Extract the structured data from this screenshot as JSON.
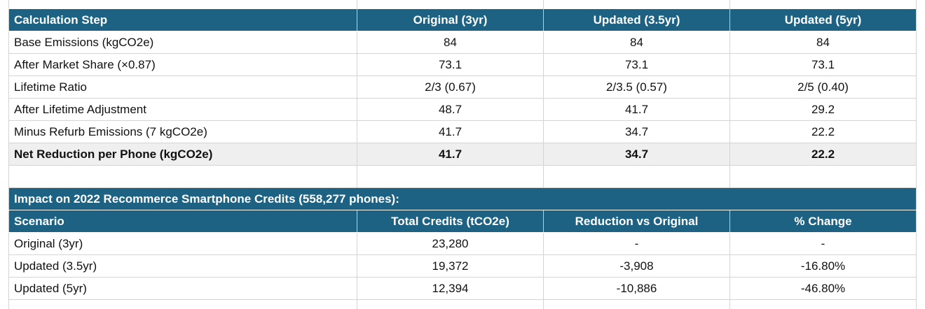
{
  "calc_table": {
    "headers": [
      "Calculation Step",
      "Original (3yr)",
      "Updated (3.5yr)",
      "Updated (5yr)"
    ],
    "rows": [
      [
        "Base Emissions (kgCO2e)",
        "84",
        "84",
        "84"
      ],
      [
        "After Market Share (×0.87)",
        "73.1",
        "73.1",
        "73.1"
      ],
      [
        "Lifetime Ratio",
        "2/3 (0.67)",
        "2/3.5 (0.57)",
        "2/5 (0.40)"
      ],
      [
        "After Lifetime Adjustment",
        "48.7",
        "41.7",
        "29.2"
      ],
      [
        "Minus Refurb Emissions (7 kgCO2e)",
        "41.7",
        "34.7",
        "22.2"
      ],
      [
        "Net Reduction per Phone (kgCO2e)",
        "41.7",
        "34.7",
        "22.2"
      ]
    ]
  },
  "impact_section": {
    "title": "Impact on 2022 Recommerce Smartphone Credits (558,277 phones):",
    "headers": [
      "Scenario",
      "Total Credits (tCO2e)",
      "Reduction vs Original",
      "% Change"
    ],
    "rows": [
      [
        "Original (3yr)",
        "23,280",
        "-",
        "-"
      ],
      [
        "Updated (3.5yr)",
        "19,372",
        "-3,908",
        "-16.80%"
      ],
      [
        "Updated (5yr)",
        "12,394",
        "-10,886",
        "-46.80%"
      ]
    ]
  },
  "colors": {
    "header_bg": "#1e6283",
    "header_text": "#ffffff",
    "highlight_row_bg": "#efefef",
    "grid_line": "#d4d4d4"
  }
}
